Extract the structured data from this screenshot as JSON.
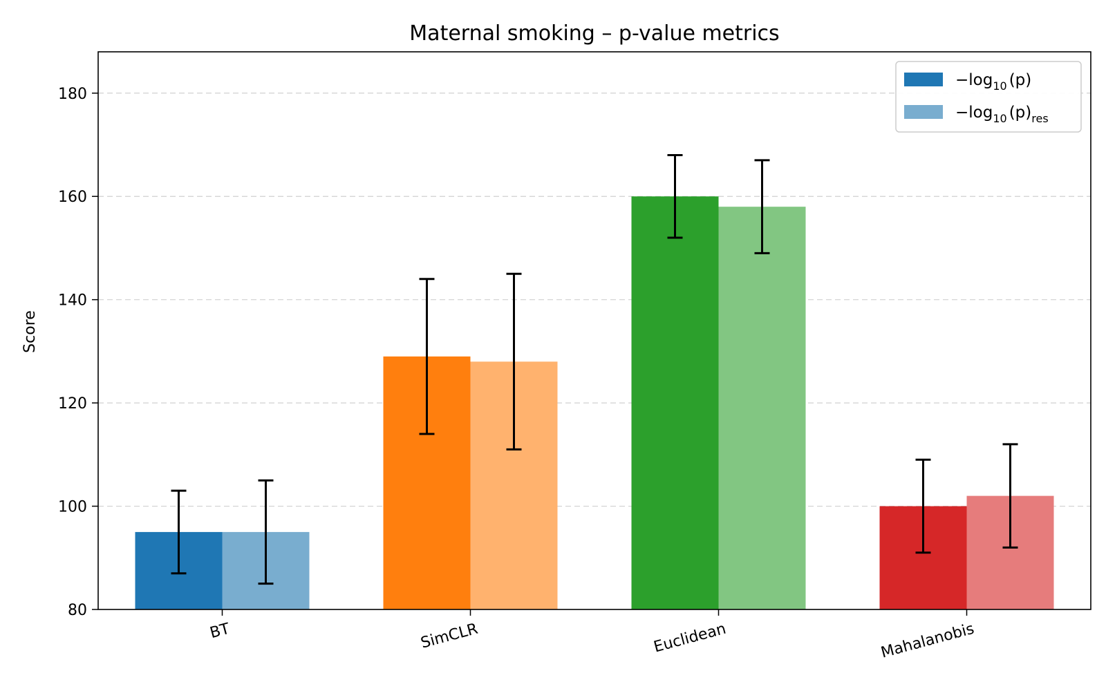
{
  "chart_data": {
    "type": "bar",
    "title": "Maternal smoking – p-value metrics",
    "xlabel": "",
    "ylabel": "Score",
    "ylim": [
      80,
      188
    ],
    "yticks": [
      80,
      100,
      120,
      140,
      160,
      180
    ],
    "grid": "y-dashed",
    "legend_position": "top-right",
    "categories": [
      "BT",
      "SimCLR",
      "Euclidean",
      "Mahalanobis"
    ],
    "series": [
      {
        "name": "−log10(p)",
        "legend": {
          "prefix": "−log",
          "sub": "10",
          "suffix": "(p)",
          "tail": ""
        },
        "values": [
          95,
          129,
          160,
          100
        ],
        "err_low": [
          87,
          114,
          152,
          91
        ],
        "err_high": [
          103,
          144,
          168,
          109
        ],
        "colors": [
          "#1f77b4",
          "#ff7f0e",
          "#2ca02c",
          "#d62728"
        ]
      },
      {
        "name": "−log10(p)res",
        "legend": {
          "prefix": "−log",
          "sub": "10",
          "suffix": "(p)",
          "tail": "res"
        },
        "values": [
          95,
          128,
          158,
          102
        ],
        "err_low": [
          85,
          111,
          149,
          92
        ],
        "err_high": [
          105,
          145,
          167,
          112
        ],
        "colors": [
          "#79adcf",
          "#ffb26e",
          "#82c682",
          "#e67c7c"
        ]
      }
    ]
  }
}
